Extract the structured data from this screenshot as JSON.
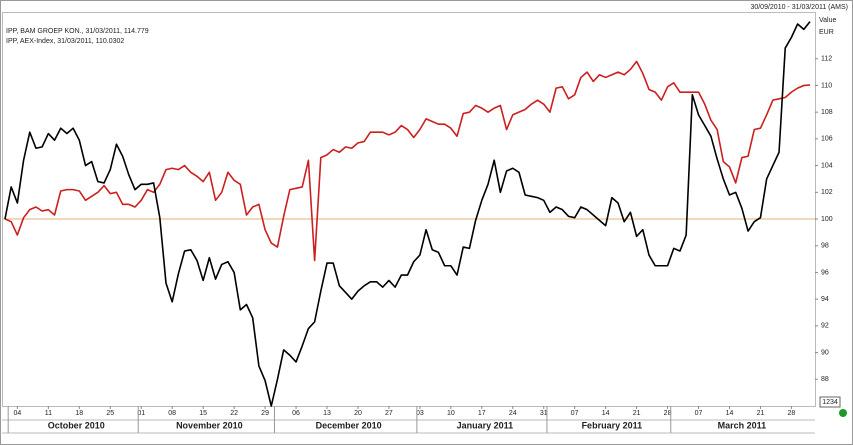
{
  "chart_data": {
    "type": "line",
    "date_range": "30/09/2010 - 31/03/2011 (AMS)",
    "y_axis_label": "Value",
    "y_axis_unit": "EUR",
    "badge": "1234",
    "xlim": [
      0,
      130
    ],
    "xticks": [
      {
        "value": 2,
        "label": "04"
      },
      {
        "value": 7,
        "label": "11"
      },
      {
        "value": 12,
        "label": "18"
      },
      {
        "value": 17,
        "label": "25"
      },
      {
        "value": 22,
        "label": "01"
      },
      {
        "value": 27,
        "label": "08"
      },
      {
        "value": 32,
        "label": "15"
      },
      {
        "value": 37,
        "label": "22"
      },
      {
        "value": 42,
        "label": "29"
      },
      {
        "value": 47,
        "label": "06"
      },
      {
        "value": 52,
        "label": "13"
      },
      {
        "value": 57,
        "label": "20"
      },
      {
        "value": 62,
        "label": "27"
      },
      {
        "value": 67,
        "label": "03"
      },
      {
        "value": 72,
        "label": "10"
      },
      {
        "value": 77,
        "label": "17"
      },
      {
        "value": 82,
        "label": "24"
      },
      {
        "value": 87,
        "label": "31"
      },
      {
        "value": 92,
        "label": "07"
      },
      {
        "value": 97,
        "label": "14"
      },
      {
        "value": 102,
        "label": "21"
      },
      {
        "value": 107,
        "label": "28"
      },
      {
        "value": 112,
        "label": "07"
      },
      {
        "value": 117,
        "label": "14"
      },
      {
        "value": 122,
        "label": "21"
      },
      {
        "value": 127,
        "label": "28"
      }
    ],
    "month_labels": [
      "October 2010",
      "November 2010",
      "December 2010",
      "January 2011",
      "February 2011",
      "March 2011"
    ],
    "month_starts": [
      1,
      22,
      44,
      67,
      88,
      108
    ],
    "ylim": [
      86,
      115.5
    ],
    "yticks": [
      88,
      90,
      92,
      94,
      96,
      98,
      100,
      102,
      104,
      106,
      108,
      110,
      112
    ],
    "reference_line": 100,
    "reference_color": "#e0b070",
    "series": [
      {
        "name": "IPP, BAM GROEP KON., 31/03/2011, 114.779",
        "color": "#000000",
        "values": [
          100.0,
          102.4,
          101.2,
          104.4,
          106.5,
          105.3,
          105.4,
          106.4,
          105.9,
          106.8,
          106.4,
          106.8,
          105.9,
          104.0,
          104.3,
          102.8,
          102.7,
          103.7,
          105.6,
          104.7,
          103.3,
          102.2,
          102.6,
          102.6,
          102.7,
          100.1,
          95.2,
          93.8,
          95.9,
          97.6,
          97.7,
          96.9,
          95.4,
          97.1,
          95.5,
          96.6,
          96.8,
          96.0,
          93.2,
          93.6,
          92.6,
          89.0,
          87.9,
          86.0,
          88.0,
          90.2,
          89.8,
          89.3,
          90.5,
          91.8,
          92.3,
          94.6,
          96.7,
          96.7,
          95.0,
          94.5,
          94.0,
          94.6,
          95.0,
          95.3,
          95.3,
          94.9,
          95.4,
          94.9,
          95.8,
          95.8,
          96.8,
          97.3,
          99.2,
          97.7,
          97.5,
          96.5,
          96.5,
          95.8,
          97.9,
          97.8,
          99.9,
          101.4,
          102.6,
          104.4,
          102.0,
          103.6,
          103.8,
          103.5,
          101.8,
          101.7,
          101.6,
          101.4,
          100.5,
          100.9,
          100.7,
          100.2,
          100.1,
          100.9,
          100.7,
          100.3,
          99.9,
          99.5,
          101.6,
          101.2,
          99.8,
          100.5,
          98.7,
          99.2,
          97.3,
          96.5,
          96.5,
          96.5,
          97.8,
          97.6,
          98.8,
          109.3,
          107.8,
          107.0,
          106.2,
          104.5,
          103.0,
          101.8,
          102.0,
          100.8,
          99.1,
          99.8,
          100.1,
          103.0,
          104.0,
          105.0,
          112.8,
          113.6,
          114.6,
          114.2,
          114.779
        ]
      },
      {
        "name": "IPP, AEX-Index, 31/03/2011, 110.0302",
        "color": "#cc1f1f",
        "values": [
          100.0,
          99.8,
          98.8,
          100.1,
          100.7,
          100.9,
          100.6,
          100.7,
          100.3,
          102.1,
          102.2,
          102.2,
          102.1,
          101.4,
          101.7,
          102.0,
          102.5,
          101.9,
          102.0,
          101.1,
          101.1,
          100.9,
          101.4,
          102.2,
          102.0,
          102.6,
          103.7,
          103.8,
          103.7,
          104.0,
          103.5,
          103.2,
          102.8,
          103.5,
          101.4,
          102.0,
          103.5,
          102.9,
          102.6,
          100.3,
          100.9,
          101.1,
          99.2,
          98.2,
          97.9,
          100.2,
          102.2,
          102.3,
          102.4,
          104.4,
          96.9,
          104.6,
          104.8,
          105.2,
          105.0,
          105.4,
          105.3,
          105.7,
          105.8,
          106.5,
          106.5,
          106.5,
          106.3,
          106.5,
          107.0,
          106.7,
          106.1,
          106.7,
          107.5,
          107.3,
          107.1,
          107.1,
          106.8,
          106.2,
          107.9,
          108.0,
          108.5,
          108.3,
          108.0,
          108.3,
          108.5,
          106.7,
          107.8,
          108.0,
          108.2,
          108.6,
          108.9,
          108.6,
          108.0,
          109.8,
          109.9,
          109.0,
          109.3,
          110.6,
          111.0,
          110.3,
          110.8,
          110.6,
          110.8,
          111.0,
          110.8,
          111.2,
          111.8,
          110.9,
          109.7,
          109.5,
          108.9,
          109.9,
          110.2,
          109.5,
          109.5,
          109.5,
          109.5,
          108.6,
          107.4,
          106.7,
          104.3,
          103.9,
          102.7,
          104.6,
          104.7,
          106.7,
          106.8,
          107.8,
          108.9,
          109.0,
          109.1,
          109.5,
          109.8,
          110.0,
          110.0302
        ]
      }
    ]
  }
}
